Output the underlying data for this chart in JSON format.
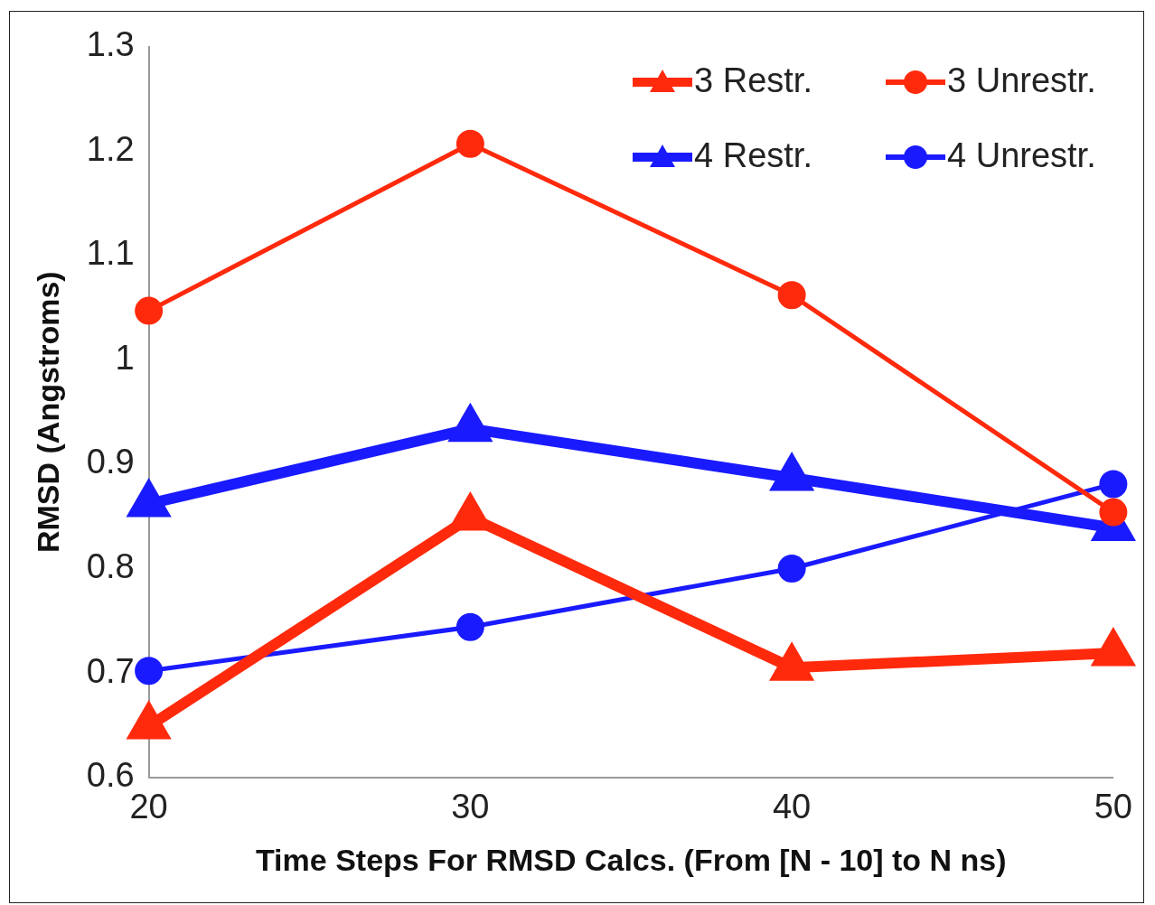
{
  "chart_data": {
    "type": "line",
    "xlabel": "Time Steps For RMSD Calcs. (From [N - 10] to N ns)",
    "ylabel": "RMSD (Angstroms)",
    "categories": [
      "20",
      "30",
      "40",
      "50"
    ],
    "series": [
      {
        "name": "3 Restr.",
        "color": "#ff2a0c",
        "marker": "triangle",
        "values": [
          0.649,
          0.849,
          0.705,
          0.719
        ]
      },
      {
        "name": "3 Unrestr.",
        "color": "#ff2a0c",
        "marker": "circle",
        "values": [
          1.047,
          1.207,
          1.062,
          0.854
        ]
      },
      {
        "name": "4 Restr.",
        "color": "#1a1aff",
        "marker": "triangle",
        "values": [
          0.862,
          0.934,
          0.887,
          0.839
        ]
      },
      {
        "name": "4 Unrestr.",
        "color": "#1a1aff",
        "marker": "circle",
        "values": [
          0.702,
          0.744,
          0.8,
          0.881
        ]
      }
    ],
    "ylim": [
      0.6,
      1.3
    ],
    "yticks": [
      0.6,
      0.7,
      0.8,
      0.9,
      1,
      1.1,
      1.2,
      1.3
    ],
    "grid": false,
    "legend": "top right"
  }
}
